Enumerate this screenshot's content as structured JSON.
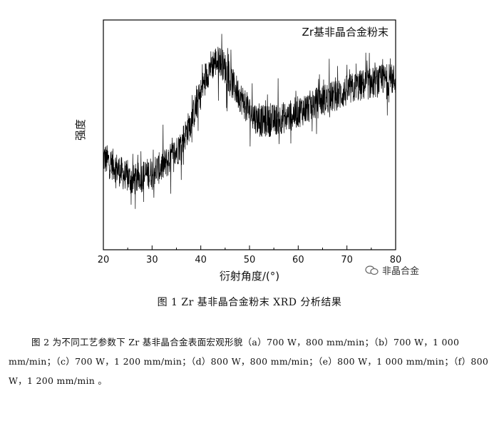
{
  "figure": {
    "caption": "图 1  Zr 基非晶合金粉末 XRD 分析结果"
  },
  "chart_data": {
    "type": "line",
    "title": "",
    "xlabel": "衍射角度/(°)",
    "ylabel": "强度",
    "legend": "Zr基非晶合金粉末",
    "legend_position": "top-right",
    "xlim": [
      20,
      80
    ],
    "ylim": [
      0,
      100
    ],
    "x_ticks": [
      "20",
      "30",
      "40",
      "50",
      "60",
      "70",
      "80"
    ],
    "grid": false,
    "x": [
      20,
      22,
      24,
      26,
      28,
      30,
      32,
      34,
      36,
      38,
      40,
      41,
      42,
      43,
      44,
      45,
      46,
      48,
      50,
      52,
      54,
      56,
      58,
      60,
      62,
      64,
      66,
      68,
      70,
      72,
      74,
      76,
      78,
      80
    ],
    "values": [
      40,
      37,
      33,
      30,
      32,
      34,
      36,
      40,
      46,
      56,
      68,
      75,
      80,
      82,
      82,
      79,
      74,
      67,
      60,
      56,
      56,
      57,
      58,
      60,
      62,
      64,
      66,
      67,
      69,
      71,
      72,
      73,
      74,
      74
    ]
  },
  "watermark": {
    "icon": "wechat-icon",
    "text": "非晶合金"
  },
  "paragraph": {
    "text": "图 2 为不同工艺参数下 Zr 基非晶合金表面宏观形貌（a）700 W，800 mm/min；（b）700 W，1 000 mm/min；（c）700 W，1 200 mm/min；（d）800 W，800 mm/min；（e）800 W，1 000 mm/min；（f）800 W，1 200 mm/min 。"
  }
}
